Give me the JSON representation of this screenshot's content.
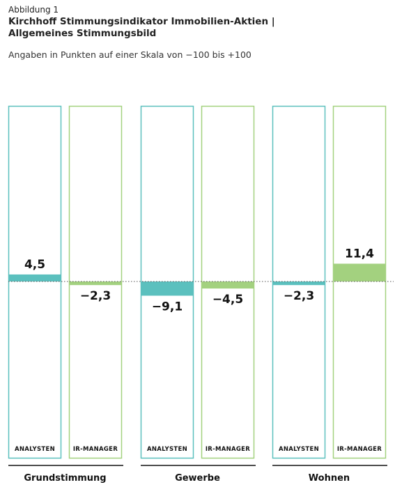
{
  "figure": {
    "label": "Abbildung 1",
    "title_line1": "Kirchhoff Stimmungsindikator Immobilien-Aktien |",
    "title_line2": "Allgemeines Stimmungsbild",
    "subtitle": "Angaben in Punkten auf einer Skala von −100 bis +100"
  },
  "chart_data": {
    "type": "bar",
    "groups": [
      "Grundstimmung",
      "Gewerbe",
      "Wohnen"
    ],
    "series": [
      {
        "name": "ANALYSTEN",
        "color": "#5bc0be",
        "values": [
          4.5,
          -9.1,
          -2.3
        ],
        "labels": [
          "4,5",
          "−9,1",
          "−2,3"
        ]
      },
      {
        "name": "IR-MANAGER",
        "color": "#a3d17f",
        "values": [
          -2.3,
          -4.5,
          11.4
        ],
        "labels": [
          "−2,3",
          "−4,5",
          "11,4"
        ]
      }
    ],
    "ylim": [
      -100,
      100
    ],
    "grid": false
  }
}
